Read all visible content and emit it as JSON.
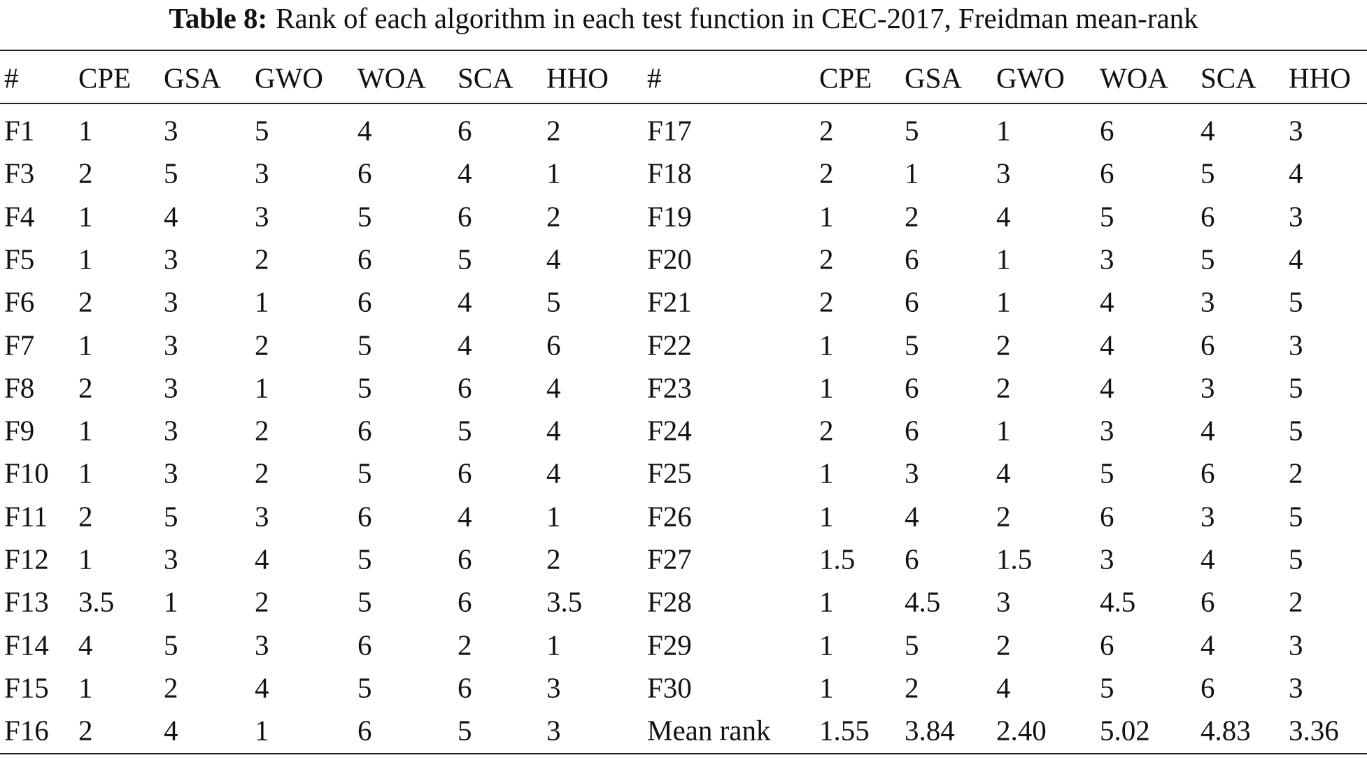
{
  "caption": {
    "label": "Table 8:",
    "text": "Rank of each algorithm in each test function in CEC-2017, Freidman mean-rank"
  },
  "table": {
    "header": [
      "#",
      "CPE",
      "GSA",
      "GWO",
      "WOA",
      "SCA",
      "HHO",
      "#",
      "CPE",
      "GSA",
      "GWO",
      "WOA",
      "SCA",
      "HHO"
    ],
    "rows": [
      [
        "F1",
        "1",
        "3",
        "5",
        "4",
        "6",
        "2",
        "F17",
        "2",
        "5",
        "1",
        "6",
        "4",
        "3"
      ],
      [
        "F3",
        "2",
        "5",
        "3",
        "6",
        "4",
        "1",
        "F18",
        "2",
        "1",
        "3",
        "6",
        "5",
        "4"
      ],
      [
        "F4",
        "1",
        "4",
        "3",
        "5",
        "6",
        "2",
        "F19",
        "1",
        "2",
        "4",
        "5",
        "6",
        "3"
      ],
      [
        "F5",
        "1",
        "3",
        "2",
        "6",
        "5",
        "4",
        "F20",
        "2",
        "6",
        "1",
        "3",
        "5",
        "4"
      ],
      [
        "F6",
        "2",
        "3",
        "1",
        "6",
        "4",
        "5",
        "F21",
        "2",
        "6",
        "1",
        "4",
        "3",
        "5"
      ],
      [
        "F7",
        "1",
        "3",
        "2",
        "5",
        "4",
        "6",
        "F22",
        "1",
        "5",
        "2",
        "4",
        "6",
        "3"
      ],
      [
        "F8",
        "2",
        "3",
        "1",
        "5",
        "6",
        "4",
        "F23",
        "1",
        "6",
        "2",
        "4",
        "3",
        "5"
      ],
      [
        "F9",
        "1",
        "3",
        "2",
        "6",
        "5",
        "4",
        "F24",
        "2",
        "6",
        "1",
        "3",
        "4",
        "5"
      ],
      [
        "F10",
        "1",
        "3",
        "2",
        "5",
        "6",
        "4",
        "F25",
        "1",
        "3",
        "4",
        "5",
        "6",
        "2"
      ],
      [
        "F11",
        "2",
        "5",
        "3",
        "6",
        "4",
        "1",
        "F26",
        "1",
        "4",
        "2",
        "6",
        "3",
        "5"
      ],
      [
        "F12",
        "1",
        "3",
        "4",
        "5",
        "6",
        "2",
        "F27",
        "1.5",
        "6",
        "1.5",
        "3",
        "4",
        "5"
      ],
      [
        "F13",
        "3.5",
        "1",
        "2",
        "5",
        "6",
        "3.5",
        "F28",
        "1",
        "4.5",
        "3",
        "4.5",
        "6",
        "2"
      ],
      [
        "F14",
        "4",
        "5",
        "3",
        "6",
        "2",
        "1",
        "F29",
        "1",
        "5",
        "2",
        "6",
        "4",
        "3"
      ],
      [
        "F15",
        "1",
        "2",
        "4",
        "5",
        "6",
        "3",
        "F30",
        "1",
        "2",
        "4",
        "5",
        "6",
        "3"
      ],
      [
        "F16",
        "2",
        "4",
        "1",
        "6",
        "5",
        "3",
        "Mean rank",
        "1.55",
        "3.84",
        "2.40",
        "5.02",
        "4.83",
        "3.36"
      ]
    ]
  }
}
